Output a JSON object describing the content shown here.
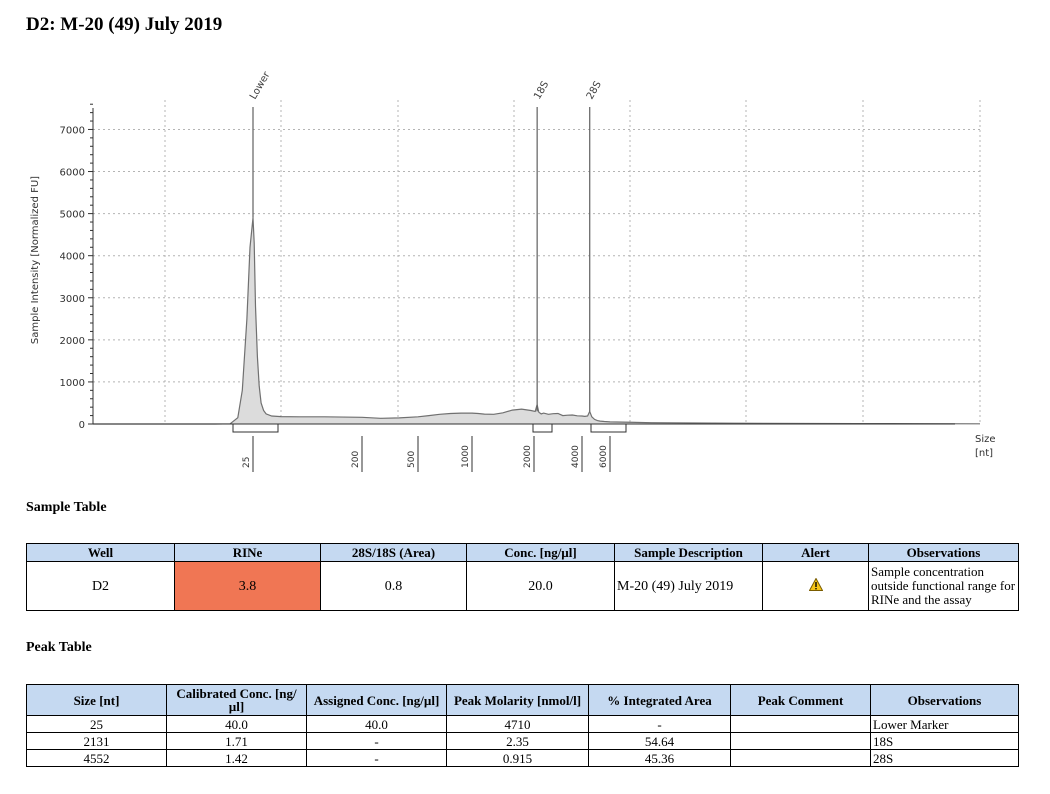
{
  "page_title": "D2: M-20 (49) July 2019",
  "chart_data": {
    "type": "line",
    "title": "",
    "ylabel": "Sample Intensity [Normalized FU]",
    "xlabel": "Size\n[nt]",
    "xlabel_line1": "Size",
    "xlabel_line2": "[nt]",
    "ylim": [
      0,
      7700
    ],
    "yticks": [
      0,
      1000,
      2000,
      3000,
      4000,
      5000,
      6000,
      7000
    ],
    "ytick_labels": [
      "0",
      "1000",
      "2000",
      "3000",
      "4000",
      "5000",
      "6000",
      "7000"
    ],
    "xtick_labels": [
      "25",
      "200",
      "500",
      "1000",
      "2000",
      "4000",
      "6000"
    ],
    "grid": true,
    "fill_color": "#dcdcdc",
    "line_color": "#707070",
    "peak_labels": [
      {
        "label": "Lower",
        "position": 25
      },
      {
        "label": "18S",
        "position": 2131
      },
      {
        "label": "28S",
        "position": 4552
      }
    ],
    "trace_note": "electropherogram trace",
    "series": [
      {
        "x": [
          -80,
          0,
          10,
          15,
          18,
          21,
          23,
          25,
          27,
          29,
          32,
          35,
          38,
          42,
          46,
          55,
          70,
          100,
          140,
          200,
          300,
          400,
          500,
          600,
          700,
          800,
          900,
          1000,
          1100,
          1200,
          1350,
          1500,
          1650,
          1800,
          1950,
          2050,
          2131,
          2200,
          2300,
          2400,
          2600,
          2800,
          3000,
          3200,
          3400,
          3600,
          3800,
          4000,
          4200,
          4400,
          4552,
          4700,
          4900,
          5100,
          5300,
          5600,
          6000,
          7000,
          9000,
          12000,
          15000
        ],
        "y": [
          0,
          0,
          5,
          150,
          800,
          2500,
          4200,
          4900,
          4300,
          2800,
          1600,
          900,
          500,
          320,
          240,
          190,
          175,
          170,
          170,
          160,
          135,
          145,
          170,
          200,
          230,
          250,
          260,
          260,
          250,
          235,
          230,
          265,
          330,
          355,
          320,
          300,
          460,
          280,
          240,
          260,
          230,
          245,
          250,
          200,
          210,
          215,
          195,
          190,
          180,
          190,
          300,
          170,
          110,
          80,
          70,
          60,
          50,
          30,
          20,
          10,
          5
        ]
      }
    ]
  },
  "sample_table": {
    "title": "Sample Table",
    "headers": [
      "Well",
      "RINe",
      "28S/18S (Area)",
      "Conc. [ng/µl]",
      "Sample Description",
      "Alert",
      "Observations"
    ],
    "row": {
      "well": "D2",
      "rine": "3.8",
      "ratio": "0.8",
      "conc": "20.0",
      "description": "M-20 (49) July 2019",
      "alert_icon": "warning-icon",
      "observations": "Sample concentration outside functional range for RINe and the assay"
    },
    "rine_color": "#f07654"
  },
  "peak_table": {
    "title": "Peak Table",
    "headers": [
      "Size [nt]",
      "Calibrated Conc. [ng/µl]",
      "Assigned Conc. [ng/µl]",
      "Peak Molarity [nmol/l]",
      "% Integrated Area",
      "Peak Comment",
      "Observations"
    ],
    "rows": [
      [
        "25",
        "40.0",
        "40.0",
        "4710",
        "-",
        "",
        "Lower Marker"
      ],
      [
        "2131",
        "1.71",
        "-",
        "2.35",
        "54.64",
        "",
        "18S"
      ],
      [
        "4552",
        "1.42",
        "-",
        "0.915",
        "45.36",
        "",
        "28S"
      ]
    ]
  }
}
